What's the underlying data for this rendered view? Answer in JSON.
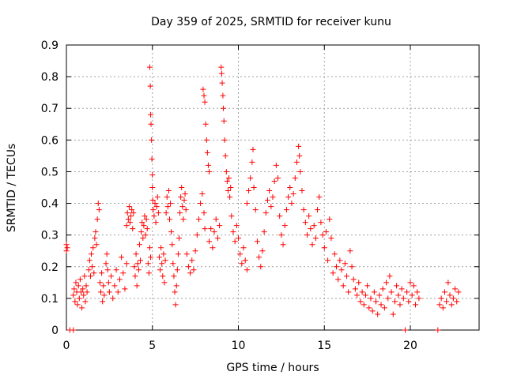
{
  "colors": {
    "series": "#ff0000",
    "grid": "#a0a0a0",
    "axis": "#000000"
  },
  "chart_data": {
    "type": "scatter",
    "title": "Day 359 of 2025, SRMTID for receiver kunu",
    "xlabel": "GPS time / hours",
    "ylabel": "SRMTID / TECUs",
    "xlim": [
      0,
      24
    ],
    "ylim": [
      0,
      0.9
    ],
    "xticks": [
      0,
      5,
      10,
      15,
      20
    ],
    "yticks": [
      0,
      0.1,
      0.2,
      0.3,
      0.4,
      0.5,
      0.6,
      0.7,
      0.8,
      0.9
    ],
    "xtick_labels": [
      "0",
      "5",
      "10",
      "15",
      "20"
    ],
    "ytick_labels": [
      "0",
      "0.1",
      "0.2",
      "0.3",
      "0.4",
      "0.5",
      "0.6",
      "0.7",
      "0.8",
      "0.9"
    ],
    "grid": true,
    "marker": "+",
    "series": [
      {
        "name": "SRMTID",
        "points": [
          [
            0.0,
            0.27
          ],
          [
            0.0,
            0.25
          ],
          [
            0.05,
            0.26
          ],
          [
            0.4,
            0.11
          ],
          [
            0.45,
            0.13
          ],
          [
            0.5,
            0.09
          ],
          [
            0.55,
            0.15
          ],
          [
            0.6,
            0.12
          ],
          [
            0.65,
            0.08
          ],
          [
            0.7,
            0.14
          ],
          [
            0.75,
            0.1
          ],
          [
            0.8,
            0.16
          ],
          [
            0.85,
            0.12
          ],
          [
            0.9,
            0.07
          ],
          [
            0.95,
            0.13
          ],
          [
            1.0,
            0.11
          ],
          [
            1.05,
            0.17
          ],
          [
            1.1,
            0.09
          ],
          [
            1.15,
            0.14
          ],
          [
            1.2,
            0.12
          ],
          [
            1.3,
            0.19
          ],
          [
            1.35,
            0.22
          ],
          [
            1.4,
            0.17
          ],
          [
            1.45,
            0.24
          ],
          [
            1.5,
            0.2
          ],
          [
            1.55,
            0.26
          ],
          [
            1.6,
            0.18
          ],
          [
            1.65,
            0.29
          ],
          [
            1.7,
            0.31
          ],
          [
            1.75,
            0.27
          ],
          [
            1.8,
            0.35
          ],
          [
            1.85,
            0.4
          ],
          [
            1.9,
            0.38
          ],
          [
            1.95,
            0.15
          ],
          [
            2.0,
            0.12
          ],
          [
            2.05,
            0.18
          ],
          [
            2.1,
            0.09
          ],
          [
            2.15,
            0.14
          ],
          [
            2.2,
            0.11
          ],
          [
            2.3,
            0.21
          ],
          [
            2.35,
            0.24
          ],
          [
            2.4,
            0.19
          ],
          [
            2.45,
            0.15
          ],
          [
            2.5,
            0.12
          ],
          [
            2.6,
            0.17
          ],
          [
            2.7,
            0.1
          ],
          [
            2.8,
            0.14
          ],
          [
            2.9,
            0.19
          ],
          [
            3.0,
            0.12
          ],
          [
            3.1,
            0.16
          ],
          [
            3.2,
            0.23
          ],
          [
            3.3,
            0.18
          ],
          [
            3.4,
            0.13
          ],
          [
            3.5,
            0.21
          ],
          [
            3.5,
            0.33
          ],
          [
            3.55,
            0.37
          ],
          [
            3.6,
            0.35
          ],
          [
            3.65,
            0.39
          ],
          [
            3.7,
            0.34
          ],
          [
            3.75,
            0.36
          ],
          [
            3.8,
            0.38
          ],
          [
            3.85,
            0.32
          ],
          [
            3.9,
            0.37
          ],
          [
            3.95,
            0.2
          ],
          [
            4.0,
            0.17
          ],
          [
            4.05,
            0.24
          ],
          [
            4.1,
            0.14
          ],
          [
            4.15,
            0.21
          ],
          [
            4.2,
            0.19
          ],
          [
            4.25,
            0.27
          ],
          [
            4.3,
            0.22
          ],
          [
            4.35,
            0.31
          ],
          [
            4.4,
            0.34
          ],
          [
            4.45,
            0.29
          ],
          [
            4.5,
            0.33
          ],
          [
            4.55,
            0.36
          ],
          [
            4.6,
            0.3
          ],
          [
            4.65,
            0.35
          ],
          [
            4.7,
            0.32
          ],
          [
            4.75,
            0.21
          ],
          [
            4.8,
            0.18
          ],
          [
            4.85,
            0.26
          ],
          [
            4.9,
            0.23
          ],
          [
            4.85,
            0.83
          ],
          [
            4.88,
            0.77
          ],
          [
            4.9,
            0.68
          ],
          [
            4.92,
            0.65
          ],
          [
            4.95,
            0.6
          ],
          [
            4.97,
            0.54
          ],
          [
            5.0,
            0.49
          ],
          [
            5.0,
            0.45
          ],
          [
            5.02,
            0.41
          ],
          [
            5.05,
            0.38
          ],
          [
            5.1,
            0.36
          ],
          [
            5.15,
            0.4
          ],
          [
            5.2,
            0.34
          ],
          [
            5.25,
            0.39
          ],
          [
            5.3,
            0.42
          ],
          [
            5.35,
            0.37
          ],
          [
            5.4,
            0.23
          ],
          [
            5.45,
            0.19
          ],
          [
            5.5,
            0.26
          ],
          [
            5.55,
            0.21
          ],
          [
            5.6,
            0.17
          ],
          [
            5.65,
            0.24
          ],
          [
            5.7,
            0.15
          ],
          [
            5.75,
            0.22
          ],
          [
            5.8,
            0.37
          ],
          [
            5.85,
            0.42
          ],
          [
            5.9,
            0.39
          ],
          [
            5.95,
            0.44
          ],
          [
            6.0,
            0.35
          ],
          [
            6.05,
            0.4
          ],
          [
            6.1,
            0.31
          ],
          [
            6.15,
            0.27
          ],
          [
            6.2,
            0.21
          ],
          [
            6.25,
            0.17
          ],
          [
            6.3,
            0.12
          ],
          [
            6.35,
            0.08
          ],
          [
            6.4,
            0.14
          ],
          [
            6.45,
            0.19
          ],
          [
            6.5,
            0.24
          ],
          [
            6.55,
            0.29
          ],
          [
            6.6,
            0.37
          ],
          [
            6.65,
            0.42
          ],
          [
            6.7,
            0.45
          ],
          [
            6.75,
            0.39
          ],
          [
            6.8,
            0.35
          ],
          [
            6.85,
            0.41
          ],
          [
            6.9,
            0.43
          ],
          [
            6.95,
            0.38
          ],
          [
            7.0,
            0.24
          ],
          [
            7.1,
            0.2
          ],
          [
            7.2,
            0.18
          ],
          [
            7.3,
            0.22
          ],
          [
            7.4,
            0.19
          ],
          [
            7.5,
            0.25
          ],
          [
            7.6,
            0.3
          ],
          [
            7.7,
            0.35
          ],
          [
            7.8,
            0.4
          ],
          [
            7.9,
            0.43
          ],
          [
            8.0,
            0.37
          ],
          [
            8.05,
            0.32
          ],
          [
            7.95,
            0.76
          ],
          [
            8.0,
            0.74
          ],
          [
            8.05,
            0.72
          ],
          [
            8.1,
            0.65
          ],
          [
            8.15,
            0.6
          ],
          [
            8.2,
            0.56
          ],
          [
            8.25,
            0.52
          ],
          [
            8.3,
            0.5
          ],
          [
            8.3,
            0.28
          ],
          [
            8.4,
            0.32
          ],
          [
            8.5,
            0.26
          ],
          [
            8.6,
            0.31
          ],
          [
            8.7,
            0.35
          ],
          [
            8.8,
            0.29
          ],
          [
            8.9,
            0.33
          ],
          [
            9.0,
            0.83
          ],
          [
            9.03,
            0.81
          ],
          [
            9.06,
            0.78
          ],
          [
            9.1,
            0.74
          ],
          [
            9.13,
            0.7
          ],
          [
            9.16,
            0.66
          ],
          [
            9.2,
            0.6
          ],
          [
            9.25,
            0.55
          ],
          [
            9.3,
            0.5
          ],
          [
            9.35,
            0.47
          ],
          [
            9.4,
            0.44
          ],
          [
            9.45,
            0.48
          ],
          [
            9.5,
            0.42
          ],
          [
            9.55,
            0.45
          ],
          [
            9.6,
            0.36
          ],
          [
            9.7,
            0.31
          ],
          [
            9.8,
            0.28
          ],
          [
            9.9,
            0.33
          ],
          [
            10.0,
            0.29
          ],
          [
            10.1,
            0.24
          ],
          [
            10.2,
            0.21
          ],
          [
            10.3,
            0.26
          ],
          [
            10.4,
            0.22
          ],
          [
            10.5,
            0.19
          ],
          [
            10.5,
            0.4
          ],
          [
            10.6,
            0.44
          ],
          [
            10.7,
            0.48
          ],
          [
            10.8,
            0.53
          ],
          [
            10.85,
            0.57
          ],
          [
            10.9,
            0.45
          ],
          [
            11.0,
            0.38
          ],
          [
            11.1,
            0.28
          ],
          [
            11.2,
            0.23
          ],
          [
            11.3,
            0.2
          ],
          [
            11.4,
            0.25
          ],
          [
            11.5,
            0.31
          ],
          [
            11.6,
            0.37
          ],
          [
            11.7,
            0.41
          ],
          [
            11.8,
            0.44
          ],
          [
            11.9,
            0.39
          ],
          [
            12.0,
            0.42
          ],
          [
            12.1,
            0.47
          ],
          [
            12.2,
            0.52
          ],
          [
            12.3,
            0.48
          ],
          [
            12.4,
            0.36
          ],
          [
            12.5,
            0.3
          ],
          [
            12.6,
            0.27
          ],
          [
            12.7,
            0.33
          ],
          [
            12.8,
            0.38
          ],
          [
            12.9,
            0.42
          ],
          [
            13.0,
            0.45
          ],
          [
            13.1,
            0.4
          ],
          [
            13.2,
            0.43
          ],
          [
            13.3,
            0.48
          ],
          [
            13.4,
            0.53
          ],
          [
            13.5,
            0.58
          ],
          [
            13.55,
            0.55
          ],
          [
            13.6,
            0.5
          ],
          [
            13.7,
            0.44
          ],
          [
            13.8,
            0.38
          ],
          [
            13.9,
            0.34
          ],
          [
            14.0,
            0.3
          ],
          [
            14.1,
            0.36
          ],
          [
            14.2,
            0.32
          ],
          [
            14.3,
            0.27
          ],
          [
            14.4,
            0.33
          ],
          [
            14.5,
            0.29
          ],
          [
            14.6,
            0.38
          ],
          [
            14.7,
            0.42
          ],
          [
            14.8,
            0.34
          ],
          [
            14.9,
            0.3
          ],
          [
            15.0,
            0.26
          ],
          [
            15.1,
            0.31
          ],
          [
            15.2,
            0.22
          ],
          [
            15.3,
            0.35
          ],
          [
            15.4,
            0.29
          ],
          [
            15.5,
            0.18
          ],
          [
            15.6,
            0.24
          ],
          [
            15.7,
            0.2
          ],
          [
            15.8,
            0.16
          ],
          [
            15.9,
            0.22
          ],
          [
            16.0,
            0.19
          ],
          [
            16.1,
            0.14
          ],
          [
            16.2,
            0.21
          ],
          [
            16.3,
            0.17
          ],
          [
            16.4,
            0.12
          ],
          [
            16.5,
            0.25
          ],
          [
            16.6,
            0.2
          ],
          [
            16.7,
            0.16
          ],
          [
            16.8,
            0.13
          ],
          [
            16.9,
            0.11
          ],
          [
            17.0,
            0.15
          ],
          [
            17.1,
            0.09
          ],
          [
            17.2,
            0.12
          ],
          [
            17.3,
            0.08
          ],
          [
            17.4,
            0.11
          ],
          [
            17.5,
            0.14
          ],
          [
            17.6,
            0.07
          ],
          [
            17.7,
            0.1
          ],
          [
            17.8,
            0.06
          ],
          [
            17.9,
            0.12
          ],
          [
            18.0,
            0.09
          ],
          [
            18.1,
            0.05
          ],
          [
            18.2,
            0.11
          ],
          [
            18.3,
            0.08
          ],
          [
            18.4,
            0.13
          ],
          [
            18.5,
            0.07
          ],
          [
            18.6,
            0.15
          ],
          [
            18.7,
            0.1
          ],
          [
            18.8,
            0.17
          ],
          [
            18.9,
            0.12
          ],
          [
            19.0,
            0.05
          ],
          [
            19.1,
            0.09
          ],
          [
            19.2,
            0.14
          ],
          [
            19.3,
            0.11
          ],
          [
            19.4,
            0.08
          ],
          [
            19.5,
            0.13
          ],
          [
            19.6,
            0.1
          ],
          [
            19.8,
            0.12
          ],
          [
            19.9,
            0.09
          ],
          [
            20.0,
            0.15
          ],
          [
            20.1,
            0.11
          ],
          [
            20.2,
            0.14
          ],
          [
            20.3,
            0.08
          ],
          [
            20.4,
            0.12
          ],
          [
            20.5,
            0.1
          ],
          [
            21.7,
            0.08
          ],
          [
            21.8,
            0.1
          ],
          [
            21.9,
            0.07
          ],
          [
            22.0,
            0.12
          ],
          [
            22.1,
            0.09
          ],
          [
            22.2,
            0.15
          ],
          [
            22.3,
            0.11
          ],
          [
            22.4,
            0.08
          ],
          [
            22.5,
            0.1
          ],
          [
            22.6,
            0.13
          ],
          [
            22.7,
            0.09
          ],
          [
            22.8,
            0.12
          ],
          [
            0.2,
            0.0
          ],
          [
            0.4,
            0.0
          ],
          [
            19.7,
            0.0
          ],
          [
            21.6,
            0.0
          ]
        ]
      }
    ]
  }
}
